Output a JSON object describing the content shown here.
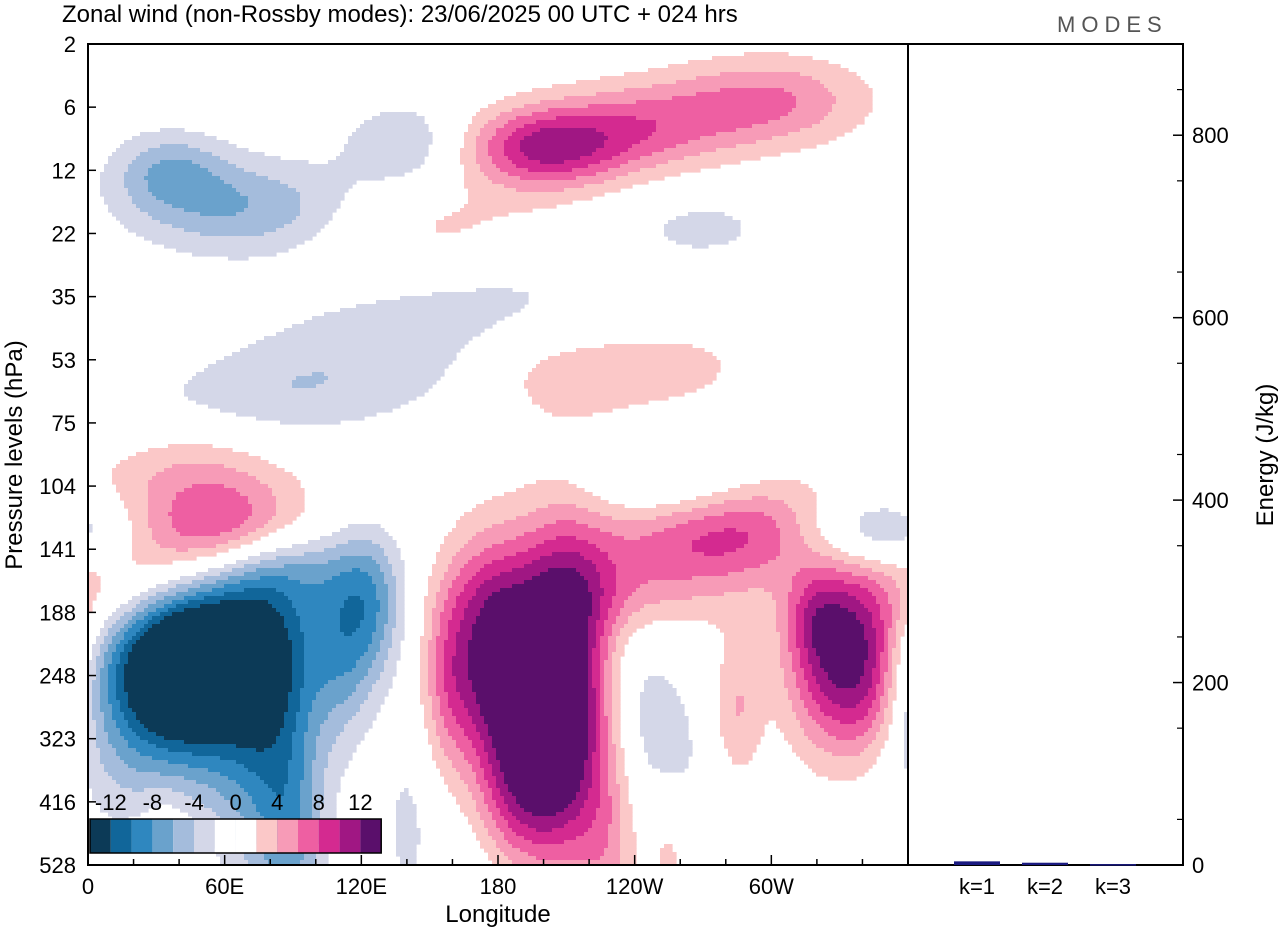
{
  "header": {
    "title": "Zonal wind (non-Rossby modes):  23/06/2025  00 UTC  + 024 hrs",
    "logo": "MODES"
  },
  "chart_data": [
    {
      "type": "heatmap",
      "title": "Zonal wind (non-Rossby modes):  23/06/2025  00 UTC  + 024 hrs",
      "xlabel": "Longitude",
      "ylabel": "Pressure levels (hPa)",
      "x_ticks": [
        "0",
        "60E",
        "120E",
        "180",
        "120W",
        "60W"
      ],
      "y_ticks": [
        "2",
        "6",
        "12",
        "22",
        "35",
        "53",
        "75",
        "104",
        "141",
        "188",
        "248",
        "323",
        "416",
        "528"
      ],
      "colorbar": {
        "labels": [
          "-12",
          "-8",
          "-4",
          "0",
          "4",
          "8",
          "12"
        ],
        "levels": [
          -14,
          -12,
          -10,
          -8,
          -6,
          -4,
          -2,
          0,
          2,
          4,
          6,
          8,
          10,
          12,
          14
        ],
        "colors": [
          "#0c3a57",
          "#11669a",
          "#2f87bf",
          "#6aa2cc",
          "#a4bcdc",
          "#d4d7e8",
          "#ffffff",
          "#ffffff",
          "#fbc8c8",
          "#f79bb7",
          "#ee5fa2",
          "#d42a90",
          "#a01783",
          "#5a0f6b"
        ]
      },
      "field_blobs": [
        {
          "lon": 35,
          "lev": 2.0,
          "w": 18,
          "h": 0.45,
          "amp": -5
        },
        {
          "lon": 70,
          "lev": 2.6,
          "w": 35,
          "h": 0.55,
          "amp": -6
        },
        {
          "lon": 140,
          "lev": 1.6,
          "w": 20,
          "h": 0.5,
          "amp": -4
        },
        {
          "lon": 200,
          "lev": 1.65,
          "w": 25,
          "h": 0.45,
          "amp": 10
        },
        {
          "lon": 245,
          "lev": 1.3,
          "w": 30,
          "h": 0.5,
          "amp": 6
        },
        {
          "lon": 300,
          "lev": 0.9,
          "w": 30,
          "h": 0.5,
          "amp": 6
        },
        {
          "lon": 150,
          "lev": 3.0,
          "w": 40,
          "h": 0.6,
          "amp": 3
        },
        {
          "lon": 270,
          "lev": 2.9,
          "w": 25,
          "h": 0.4,
          "amp": -2.5
        },
        {
          "lon": 45,
          "lev": 6.7,
          "w": 35,
          "h": 0.7,
          "amp": 4.5
        },
        {
          "lon": 20,
          "lev": 5.9,
          "w": 40,
          "h": 0.55,
          "amp": -2.5
        },
        {
          "lon": 80,
          "lev": 5.6,
          "w": 30,
          "h": 0.55,
          "amp": -2.5
        },
        {
          "lon": 125,
          "lev": 5.0,
          "w": 40,
          "h": 0.7,
          "amp": -3
        },
        {
          "lon": 205,
          "lev": 5.3,
          "w": 25,
          "h": 0.5,
          "amp": 2.5
        },
        {
          "lon": 255,
          "lev": 5.1,
          "w": 35,
          "h": 0.6,
          "amp": 2.5
        },
        {
          "lon": 180,
          "lev": 3.9,
          "w": 45,
          "h": 0.6,
          "amp": -2.5
        },
        {
          "lon": 35,
          "lev": 8.1,
          "w": 35,
          "h": 0.55,
          "amp": 4.5
        },
        {
          "lon": 65,
          "lev": 7.6,
          "w": 25,
          "h": 0.5,
          "amp": 6.5
        },
        {
          "lon": 20,
          "lev": 8.9,
          "w": 30,
          "h": 0.5,
          "amp": 3
        },
        {
          "lon": 90,
          "lev": 8.3,
          "w": 25,
          "h": 0.5,
          "amp": -3.5
        },
        {
          "lon": 230,
          "lev": 8.7,
          "w": 40,
          "h": 0.5,
          "amp": 4
        },
        {
          "lon": 275,
          "lev": 7.9,
          "w": 40,
          "h": 0.5,
          "amp": 6.5
        },
        {
          "lon": 310,
          "lev": 7.5,
          "w": 30,
          "h": 0.5,
          "amp": 5
        },
        {
          "lon": 330,
          "lev": 7.7,
          "w": 25,
          "h": 0.45,
          "amp": -5
        },
        {
          "lon": 350,
          "lev": 7.7,
          "w": 25,
          "h": 0.45,
          "amp": -5
        },
        {
          "lon": 255,
          "lev": 6.9,
          "w": 25,
          "h": 0.4,
          "amp": -2.5
        },
        {
          "lon": 45,
          "lev": 9.7,
          "w": 22,
          "h": 0.8,
          "amp": -15
        },
        {
          "lon": 35,
          "lev": 10.5,
          "w": 28,
          "h": 1.2,
          "amp": -9
        },
        {
          "lon": 78,
          "lev": 9.3,
          "w": 22,
          "h": 1.2,
          "amp": -7
        },
        {
          "lon": 80,
          "lev": 11.4,
          "w": 15,
          "h": 1.6,
          "amp": -6
        },
        {
          "lon": 90,
          "lev": 12.5,
          "w": 10,
          "h": 1.0,
          "amp": -4
        },
        {
          "lon": 125,
          "lev": 8.9,
          "w": 10,
          "h": 0.8,
          "amp": -6
        },
        {
          "lon": 112,
          "lev": 9.5,
          "w": 10,
          "h": 1.0,
          "amp": -5
        },
        {
          "lon": 175,
          "lev": 9.6,
          "w": 14,
          "h": 1.2,
          "amp": 10
        },
        {
          "lon": 208,
          "lev": 10.0,
          "w": 16,
          "h": 1.6,
          "amp": 14
        },
        {
          "lon": 200,
          "lev": 11.4,
          "w": 14,
          "h": 1.2,
          "amp": 8
        },
        {
          "lon": 188,
          "lev": 12.4,
          "w": 12,
          "h": 0.8,
          "amp": 3
        },
        {
          "lon": 158,
          "lev": 10.1,
          "w": 8,
          "h": 1.0,
          "amp": 4
        },
        {
          "lon": 180,
          "lev": 11.2,
          "w": 10,
          "h": 1.5,
          "amp": 3
        },
        {
          "lon": 238,
          "lev": 10.4,
          "w": 12,
          "h": 1.0,
          "amp": -3
        },
        {
          "lon": 257,
          "lev": 11.3,
          "w": 12,
          "h": 1.0,
          "amp": -2.5
        },
        {
          "lon": 285,
          "lev": 10.5,
          "w": 8,
          "h": 0.8,
          "amp": 4
        },
        {
          "lon": 330,
          "lev": 9.8,
          "w": 16,
          "h": 1.0,
          "amp": 12
        },
        {
          "lon": 345,
          "lev": 9.9,
          "w": 10,
          "h": 1.0,
          "amp": 4
        },
        {
          "lon": 320,
          "lev": 9.1,
          "w": 10,
          "h": 0.5,
          "amp": 4
        },
        {
          "lon": 35,
          "lev": 12.7,
          "w": 10,
          "h": 0.8,
          "amp": 3
        },
        {
          "lon": 185,
          "lev": 13.0,
          "w": 15,
          "h": 0.8,
          "amp": -3
        },
        {
          "lon": 228,
          "lev": 12.7,
          "w": 10,
          "h": 1.2,
          "amp": 4
        },
        {
          "lon": 255,
          "lev": 12.8,
          "w": 6,
          "h": 0.8,
          "amp": 3
        },
        {
          "lon": 140,
          "lev": 12.4,
          "w": 8,
          "h": 1.0,
          "amp": -2.5
        }
      ]
    },
    {
      "type": "bar",
      "ylabel": "Energy (J/kg)",
      "ylim": [
        0,
        900
      ],
      "y_ticks": [
        "0",
        "200",
        "400",
        "600",
        "800"
      ],
      "categories": [
        "k=1",
        "k=2",
        "k=3"
      ],
      "values": [
        4,
        2.5,
        1
      ],
      "color": "#1a1a80"
    }
  ]
}
